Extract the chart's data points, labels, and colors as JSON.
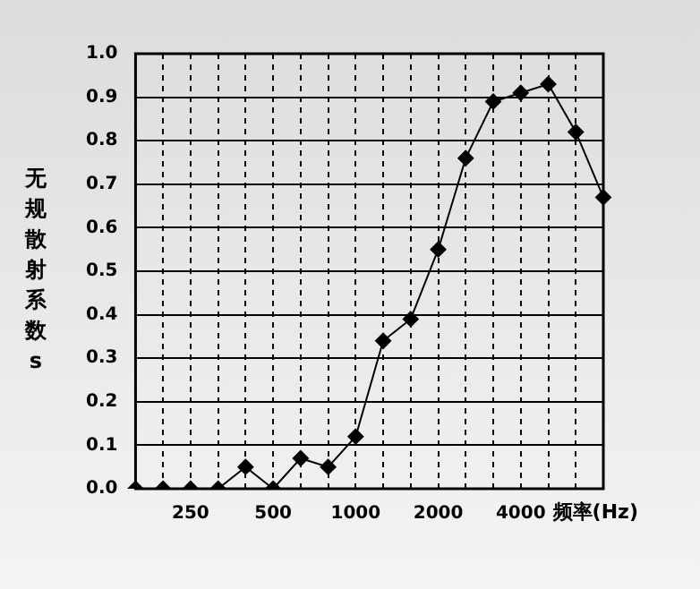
{
  "chart_data": {
    "type": "line",
    "xlabel": "频率(Hz)",
    "ylabel": "无规散射系数 s",
    "categories": [
      null,
      null,
      "250",
      null,
      null,
      "500",
      null,
      null,
      "1000",
      null,
      null,
      "2000",
      null,
      null,
      "4000",
      null,
      null,
      null
    ],
    "series": [
      {
        "color": "#000000",
        "values": [
          0,
          0,
          0,
          0,
          0.05,
          0,
          0.07,
          0.05,
          0.12,
          0.34,
          0.39,
          0.55,
          0.76,
          0.89,
          0.91,
          0.93,
          0.82,
          0.67
        ]
      }
    ],
    "ylim": [
      0,
      1
    ],
    "yticks": [
      {
        "value": 0,
        "label": "0.0"
      },
      {
        "value": 0.1,
        "label": "0.1"
      },
      {
        "value": 0.2,
        "label": "0.2"
      },
      {
        "value": 0.3,
        "label": "0.3"
      },
      {
        "value": 0.4,
        "label": "0.4"
      },
      {
        "value": 0.5,
        "label": "0.5"
      },
      {
        "value": 0.6,
        "label": "0.6"
      },
      {
        "value": 0.7,
        "label": "0.7"
      },
      {
        "value": 0.8,
        "label": "0.8"
      },
      {
        "value": 0.9,
        "label": "0.9"
      },
      {
        "value": 1,
        "label": "1.0"
      }
    ],
    "grid": true,
    "marker": "diamond",
    "line_style": "solid",
    "legend": false
  }
}
